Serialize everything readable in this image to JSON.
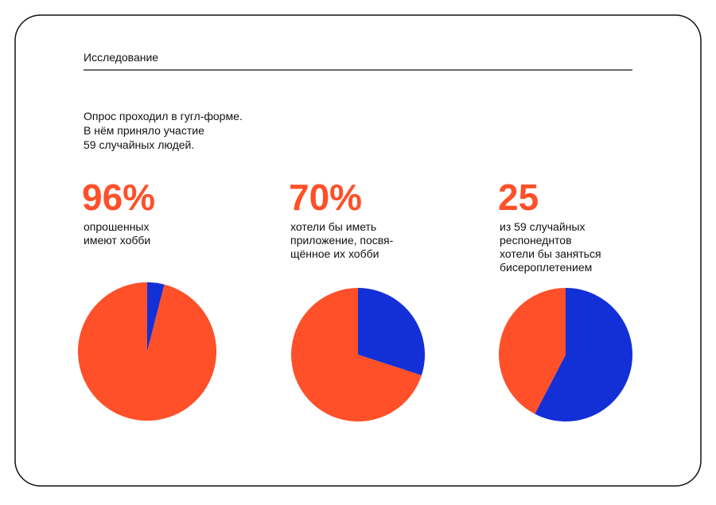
{
  "header": {
    "title": "Исследование"
  },
  "intro": [
    "Опрос проходил в гугл-форме.",
    "В нём приняло участие",
    "59 случайных людей."
  ],
  "chart_data": [
    {
      "type": "pie",
      "headline": "96%",
      "caption": [
        "опрошенных",
        "имеют хобби"
      ],
      "values": [
        4,
        96
      ],
      "colors": [
        "#1330d6",
        "#ff5029"
      ]
    },
    {
      "type": "pie",
      "headline": "70%",
      "caption": [
        "хотели бы иметь",
        "приложение, посвя-",
        "щённое их хобби"
      ],
      "values": [
        30,
        70
      ],
      "colors": [
        "#1330d6",
        "#ff5029"
      ]
    },
    {
      "type": "pie",
      "headline": "25",
      "caption": [
        "из 59 случайных",
        "респонеднтов",
        "хотели бы заняться",
        "бисероплетением"
      ],
      "values": [
        34,
        25
      ],
      "colors": [
        "#1330d6",
        "#ff5029"
      ]
    }
  ]
}
